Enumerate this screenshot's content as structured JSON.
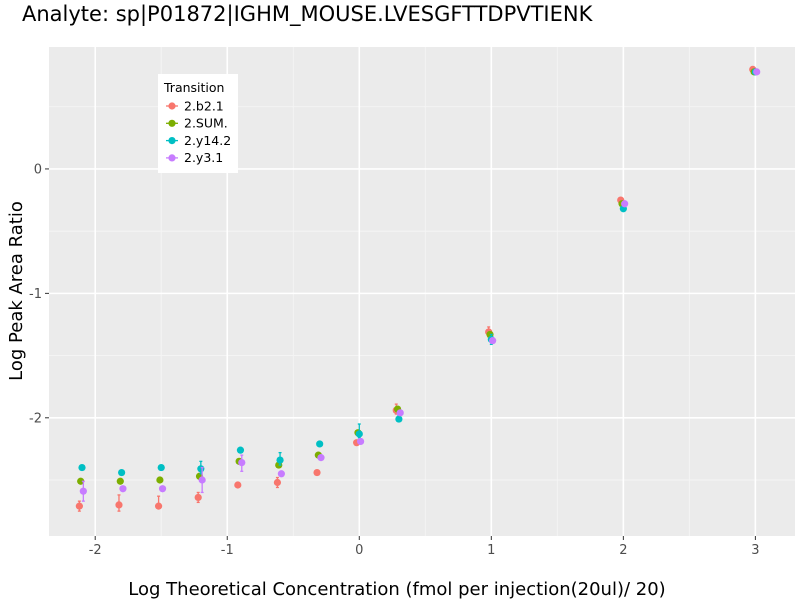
{
  "chart_data": {
    "type": "scatter",
    "title": "Analyte: sp|P01872|IGHM_MOUSE.LVESGFTTDPVTIENK",
    "xlabel": "Log Theoretical Concentration (fmol per injection(20ul)/ 20)",
    "ylabel": "Log Peak Area Ratio",
    "xlim": [
      -2.35,
      3.3
    ],
    "ylim": [
      -2.95,
      0.98
    ],
    "x_ticks": [
      -2,
      -1,
      0,
      1,
      2,
      3
    ],
    "x_tick_labels": [
      "-2",
      "-1",
      "0",
      "1",
      "2",
      "3"
    ],
    "y_ticks": [
      -2,
      -1,
      0
    ],
    "y_tick_labels": [
      "-2",
      "-1",
      "0"
    ],
    "grid": true,
    "legend": {
      "title": "Transition",
      "position": "top-left",
      "entries": [
        "2.b2.1",
        "2.SUM.",
        "2.y14.2",
        "2.y3.1"
      ]
    },
    "series": [
      {
        "name": "2.b2.1",
        "color": "#F8766D",
        "points": [
          {
            "x": -2.12,
            "y": -2.71,
            "ymin": -2.75,
            "ymax": -2.67
          },
          {
            "x": -1.82,
            "y": -2.7,
            "ymin": -2.75,
            "ymax": -2.62
          },
          {
            "x": -1.52,
            "y": -2.71,
            "ymin": -2.71,
            "ymax": -2.63
          },
          {
            "x": -1.22,
            "y": -2.64,
            "ymin": -2.68,
            "ymax": -2.6
          },
          {
            "x": -0.92,
            "y": -2.54,
            "ymin": -2.54,
            "ymax": -2.54
          },
          {
            "x": -0.62,
            "y": -2.52,
            "ymin": -2.56,
            "ymax": -2.48
          },
          {
            "x": -0.32,
            "y": -2.44,
            "ymin": -2.44,
            "ymax": -2.44
          },
          {
            "x": -0.02,
            "y": -2.2,
            "ymin": -2.2,
            "ymax": -2.2
          },
          {
            "x": 0.28,
            "y": -1.94,
            "ymin": -1.97,
            "ymax": -1.89
          },
          {
            "x": 0.98,
            "y": -1.31,
            "ymin": -1.35,
            "ymax": -1.27
          },
          {
            "x": 1.98,
            "y": -0.25,
            "ymin": -0.25,
            "ymax": -0.25
          },
          {
            "x": 2.98,
            "y": 0.8,
            "ymin": 0.8,
            "ymax": 0.8
          }
        ]
      },
      {
        "name": "2.SUM.",
        "color": "#7CAE00",
        "points": [
          {
            "x": -2.11,
            "y": -2.51,
            "ymin": -2.51,
            "ymax": -2.51
          },
          {
            "x": -1.81,
            "y": -2.51,
            "ymin": -2.51,
            "ymax": -2.51
          },
          {
            "x": -1.51,
            "y": -2.5,
            "ymin": -2.5,
            "ymax": -2.5
          },
          {
            "x": -1.21,
            "y": -2.47,
            "ymin": -2.47,
            "ymax": -2.47
          },
          {
            "x": -0.91,
            "y": -2.35,
            "ymin": -2.35,
            "ymax": -2.35
          },
          {
            "x": -0.61,
            "y": -2.38,
            "ymin": -2.38,
            "ymax": -2.38
          },
          {
            "x": -0.31,
            "y": -2.3,
            "ymin": -2.3,
            "ymax": -2.3
          },
          {
            "x": -0.01,
            "y": -2.12,
            "ymin": -2.12,
            "ymax": -2.12
          },
          {
            "x": 0.29,
            "y": -1.93,
            "ymin": -1.93,
            "ymax": -1.93
          },
          {
            "x": 0.99,
            "y": -1.33,
            "ymin": -1.33,
            "ymax": -1.33
          },
          {
            "x": 1.99,
            "y": -0.28,
            "ymin": -0.28,
            "ymax": -0.28
          },
          {
            "x": 2.99,
            "y": 0.78,
            "ymin": 0.78,
            "ymax": 0.78
          }
        ]
      },
      {
        "name": "2.y14.2",
        "color": "#00BFC4",
        "points": [
          {
            "x": -2.1,
            "y": -2.4,
            "ymin": -2.4,
            "ymax": -2.4
          },
          {
            "x": -1.8,
            "y": -2.44,
            "ymin": -2.44,
            "ymax": -2.44
          },
          {
            "x": -1.5,
            "y": -2.4,
            "ymin": -2.4,
            "ymax": -2.4
          },
          {
            "x": -1.2,
            "y": -2.41,
            "ymin": -2.45,
            "ymax": -2.35
          },
          {
            "x": -0.9,
            "y": -2.26,
            "ymin": -2.26,
            "ymax": -2.26
          },
          {
            "x": -0.6,
            "y": -2.34,
            "ymin": -2.38,
            "ymax": -2.28
          },
          {
            "x": -0.3,
            "y": -2.21,
            "ymin": -2.21,
            "ymax": -2.21
          },
          {
            "x": 0.0,
            "y": -2.13,
            "ymin": -2.16,
            "ymax": -2.05
          },
          {
            "x": 0.3,
            "y": -2.01,
            "ymin": -2.03,
            "ymax": -1.98
          },
          {
            "x": 1.0,
            "y": -1.37,
            "ymin": -1.41,
            "ymax": -1.33
          },
          {
            "x": 2.0,
            "y": -0.32,
            "ymin": -0.32,
            "ymax": -0.32
          },
          {
            "x": 3.0,
            "y": 0.78,
            "ymin": 0.78,
            "ymax": 0.78
          }
        ]
      },
      {
        "name": "2.y3.1",
        "color": "#C77CFF",
        "points": [
          {
            "x": -2.09,
            "y": -2.59,
            "ymin": -2.67,
            "ymax": -2.51
          },
          {
            "x": -1.79,
            "y": -2.57,
            "ymin": -2.57,
            "ymax": -2.57
          },
          {
            "x": -1.49,
            "y": -2.57,
            "ymin": -2.57,
            "ymax": -2.57
          },
          {
            "x": -1.19,
            "y": -2.5,
            "ymin": -2.6,
            "ymax": -2.4
          },
          {
            "x": -0.89,
            "y": -2.36,
            "ymin": -2.43,
            "ymax": -2.3
          },
          {
            "x": -0.59,
            "y": -2.45,
            "ymin": -2.45,
            "ymax": -2.45
          },
          {
            "x": -0.29,
            "y": -2.32,
            "ymin": -2.32,
            "ymax": -2.32
          },
          {
            "x": 0.01,
            "y": -2.19,
            "ymin": -2.21,
            "ymax": -2.17
          },
          {
            "x": 0.31,
            "y": -1.96,
            "ymin": -1.96,
            "ymax": -1.96
          },
          {
            "x": 1.01,
            "y": -1.38,
            "ymin": -1.38,
            "ymax": -1.38
          },
          {
            "x": 2.01,
            "y": -0.28,
            "ymin": -0.28,
            "ymax": -0.28
          },
          {
            "x": 3.01,
            "y": 0.78,
            "ymin": 0.78,
            "ymax": 0.78
          }
        ]
      }
    ]
  }
}
